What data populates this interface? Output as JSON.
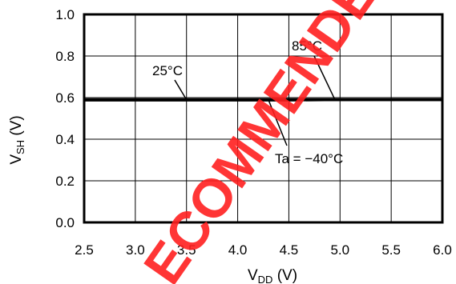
{
  "chart_data": {
    "type": "line",
    "xlabel_main": "V",
    "xlabel_sub": "DD",
    "xlabel_unit": " (V)",
    "ylabel_main": "V",
    "ylabel_sub": "SH",
    "ylabel_unit": " (V)",
    "xlim": [
      2.5,
      6.0
    ],
    "ylim": [
      0.0,
      1.0
    ],
    "x_ticks": [
      2.5,
      3.0,
      3.5,
      4.0,
      4.5,
      5.0,
      5.5,
      6.0
    ],
    "x_tick_labels": [
      "2.5",
      "3.0",
      "3.5",
      "4.0",
      "4.5",
      "5.0",
      "5.5",
      "6.0"
    ],
    "y_ticks": [
      0.0,
      0.2,
      0.4,
      0.6,
      0.8,
      1.0
    ],
    "y_tick_labels": [
      "0.0",
      "0.2",
      "0.4",
      "0.6",
      "0.8",
      "1.0"
    ],
    "grid": true,
    "series": [
      {
        "name": "25°C",
        "x": [
          2.5,
          3.5,
          4.5,
          5.5,
          6.0
        ],
        "y": [
          0.59,
          0.59,
          0.59,
          0.59,
          0.59
        ]
      },
      {
        "name": "85°C",
        "x": [
          2.5,
          3.5,
          4.5,
          5.5,
          6.0
        ],
        "y": [
          0.59,
          0.59,
          0.59,
          0.59,
          0.59
        ]
      },
      {
        "name": "Ta = −40°C",
        "x": [
          2.5,
          3.5,
          4.5,
          5.5,
          6.0
        ],
        "y": [
          0.585,
          0.585,
          0.585,
          0.59,
          0.59
        ]
      }
    ],
    "annotations": [
      {
        "text": "25°C",
        "point_x": 3.5,
        "point_y": 0.59
      },
      {
        "text": "85°C",
        "point_x": 4.95,
        "point_y": 0.59
      },
      {
        "text": "Ta = −40°C",
        "point_x": 4.3,
        "point_y": 0.59
      }
    ]
  },
  "watermark": {
    "text": "ECOMMENDED",
    "color": "#ff2020"
  }
}
